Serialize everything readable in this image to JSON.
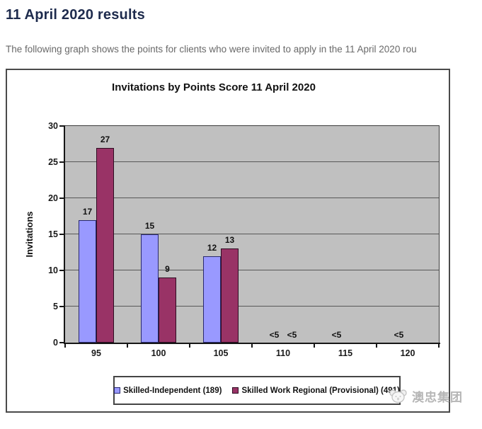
{
  "page": {
    "title": "11 April 2020 results",
    "subtitle": "The following graph shows the points for clients who were invited to apply in the 11 April 2020 rou",
    "watermark_text": "澳忠集团"
  },
  "chart_data": {
    "type": "bar",
    "title": "Invitations by Points Score 11 April 2020",
    "xlabel": "",
    "ylabel": "Invitations",
    "categories": [
      "95",
      "100",
      "105",
      "110",
      "115",
      "120"
    ],
    "ylim": [
      0,
      30
    ],
    "yticks": [
      0,
      5,
      10,
      15,
      20,
      25,
      30
    ],
    "grid": true,
    "plot_background": "#c0c0c0",
    "legend_position": "bottom",
    "series": [
      {
        "name": "Skilled-Independent (189)",
        "color": "#9999ff",
        "border_color": "#28286e",
        "values": [
          17,
          15,
          12,
          null,
          null,
          null
        ],
        "labels": [
          "17",
          "15",
          "12",
          "<5",
          "<5",
          "<5"
        ]
      },
      {
        "name": "Skilled Work Regional (Provisional) (491)",
        "color": "#993366",
        "border_color": "#2e0c22",
        "values": [
          27,
          9,
          13,
          null,
          null,
          null
        ],
        "labels": [
          "27",
          "9",
          "13",
          "<5",
          "",
          ""
        ]
      }
    ]
  },
  "colors": {
    "page_title": "#1e2b4d",
    "subtitle_text": "#696969",
    "grid_line": "#585858",
    "watermark": "#b6b6b6"
  }
}
